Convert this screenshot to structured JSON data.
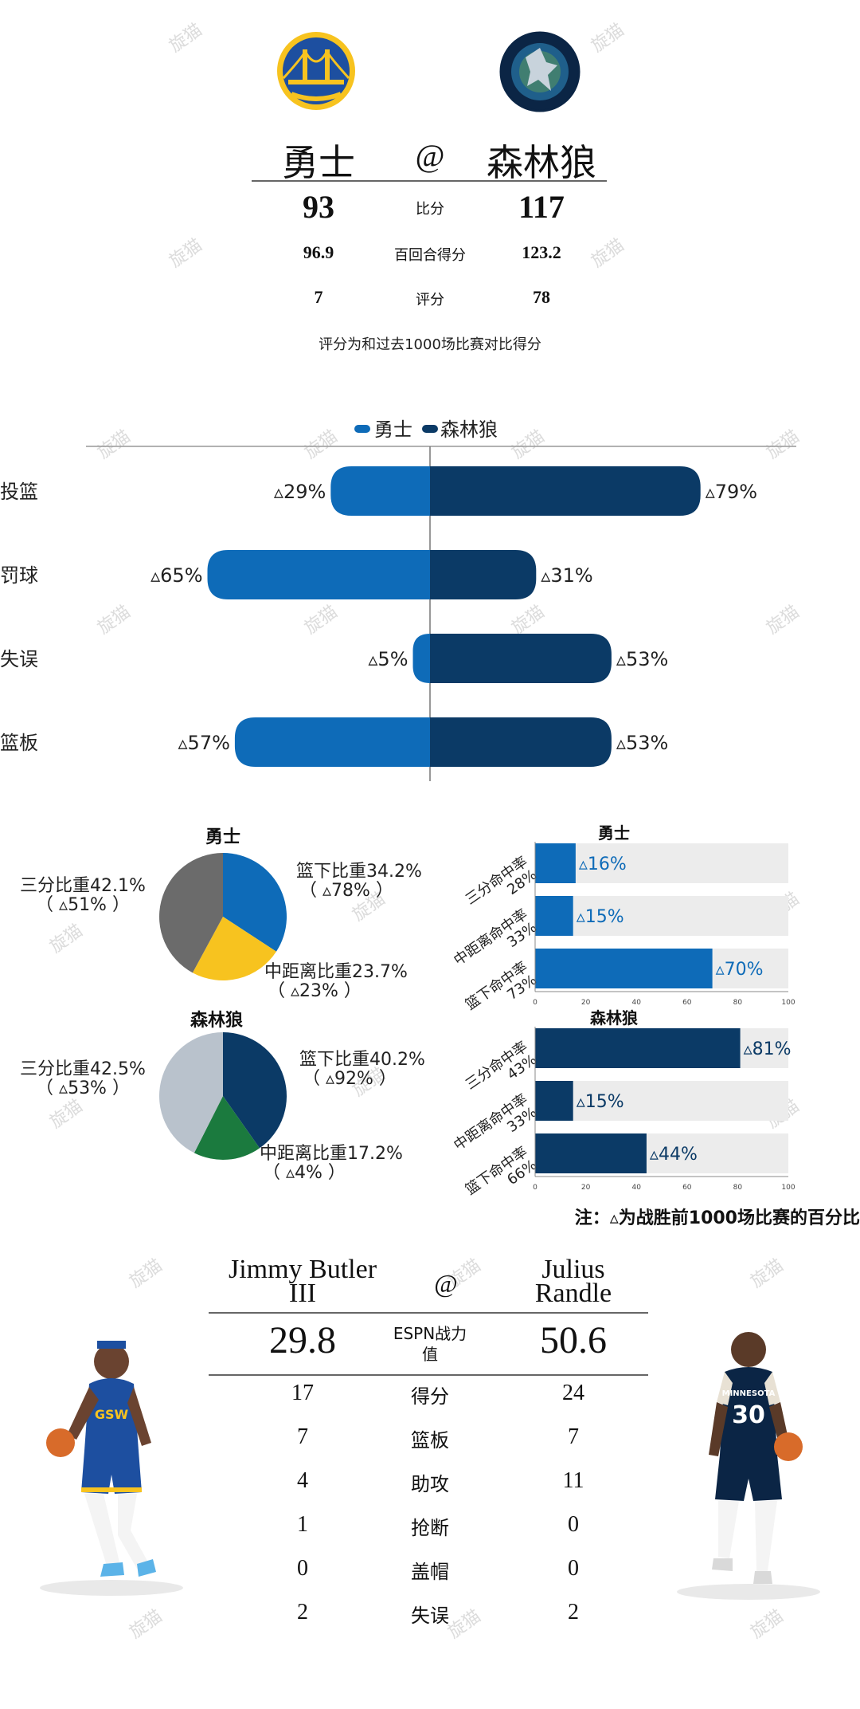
{
  "header": {
    "home_team": "勇士",
    "at": "@",
    "away_team": "森林狼",
    "rows": [
      {
        "home": "93",
        "label": "比分",
        "away": "117"
      },
      {
        "home": "96.9",
        "label": "百回合得分",
        "away": "123.2"
      },
      {
        "home": "7",
        "label": "评分",
        "away": "78"
      }
    ],
    "note": "评分为和过去1000场比赛对比得分"
  },
  "colors": {
    "warriors": "#0E6BB8",
    "wolves": "#0B3A66",
    "gold": "#F7C31F",
    "gray": "#6B6B6B",
    "lightgray": "#B9C2CC",
    "green": "#1B7A3E"
  },
  "watermark": "旋猫",
  "chart_data": [
    {
      "type": "bar",
      "orientation": "diverging-horizontal",
      "legend": [
        "勇士",
        "森林狼"
      ],
      "categories": [
        "投篮",
        "罚球",
        "失误",
        "篮板"
      ],
      "series": [
        {
          "name": "勇士",
          "values": [
            29,
            65,
            5,
            57
          ],
          "labels": [
            "▵29%",
            "▵65%",
            "▵5%",
            "▵57%"
          ]
        },
        {
          "name": "森林狼",
          "values": [
            79,
            31,
            53,
            53
          ],
          "labels": [
            "▵79%",
            "▵31%",
            "▵53%",
            "▵53%"
          ]
        }
      ],
      "xlim": [
        0,
        100
      ]
    },
    {
      "type": "pie",
      "title": "勇士",
      "slices": [
        {
          "label": "篮下比重34.2%",
          "sub": "（ ▵78% ）",
          "value": 34.2,
          "color": "#0E6BB8"
        },
        {
          "label": "中距离比重23.7%",
          "sub": "（ ▵23% ）",
          "value": 23.7,
          "color": "#F7C31F"
        },
        {
          "label": "三分比重42.1%",
          "sub": "（ ▵51% ）",
          "value": 42.1,
          "color": "#6B6B6B"
        }
      ]
    },
    {
      "type": "bar",
      "title": "勇士",
      "orientation": "horizontal",
      "categories": [
        "三分命中率 28%",
        "中距离命中率 33%",
        "篮下命中率 73%"
      ],
      "values": [
        16,
        15,
        70
      ],
      "labels": [
        "▵16%",
        "▵15%",
        "▵70%"
      ],
      "xlim": [
        0,
        100
      ],
      "xticks": [
        "0",
        "20",
        "40",
        "60",
        "80",
        "100"
      ]
    },
    {
      "type": "pie",
      "title": "森林狼",
      "slices": [
        {
          "label": "篮下比重40.2%",
          "sub": "（ ▵92% ）",
          "value": 40.2,
          "color": "#0B3A66"
        },
        {
          "label": "中距离比重17.2%",
          "sub": "（ ▵4% ）",
          "value": 17.2,
          "color": "#1B7A3E"
        },
        {
          "label": "三分比重42.5%",
          "sub": "（ ▵53% ）",
          "value": 42.5,
          "color": "#B9C2CC"
        }
      ]
    },
    {
      "type": "bar",
      "title": "森林狼",
      "orientation": "horizontal",
      "categories": [
        "三分命中率 43%",
        "中距离命中率 33%",
        "篮下命中率 66%"
      ],
      "values": [
        81,
        15,
        44
      ],
      "labels": [
        "▵81%",
        "▵15%",
        "▵44%"
      ],
      "xlim": [
        0,
        100
      ],
      "xticks": [
        "0",
        "20",
        "40",
        "60",
        "80",
        "100"
      ]
    }
  ],
  "chart_note": "注：▵为战胜前1000场比赛的百分比",
  "players": {
    "home_name_line1": "Jimmy Butler",
    "home_name_line2": "III",
    "at": "@",
    "away_name_line1": "Julius",
    "away_name_line2": "Randle",
    "headline": {
      "home": "29.8",
      "label_line1": "ESPN战力",
      "label_line2": "值",
      "away": "50.6"
    },
    "rows": [
      {
        "home": "17",
        "label": "得分",
        "away": "24"
      },
      {
        "home": "7",
        "label": "篮板",
        "away": "7"
      },
      {
        "home": "4",
        "label": "助攻",
        "away": "11"
      },
      {
        "home": "1",
        "label": "抢断",
        "away": "0"
      },
      {
        "home": "0",
        "label": "盖帽",
        "away": "0"
      },
      {
        "home": "2",
        "label": "失误",
        "away": "2"
      }
    ],
    "home_jersey": "GSW",
    "away_jersey_team": "MINNESOTA",
    "away_jersey_number": "30"
  }
}
